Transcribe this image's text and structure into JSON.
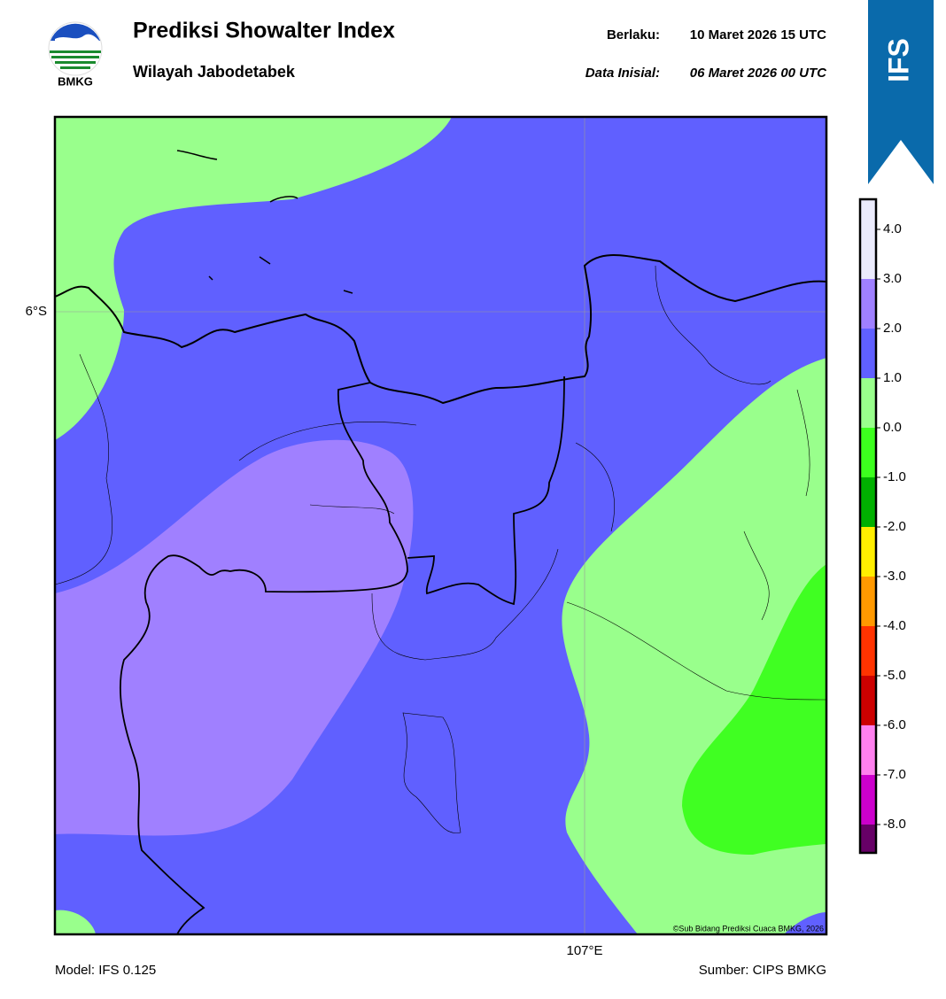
{
  "header": {
    "logo_text": "BMKG",
    "title": "Prediksi Showalter Index",
    "subtitle": "Wilayah Jabodetabek",
    "valid_label": "Berlaku:",
    "valid_time": "10 Maret 2026 15 UTC",
    "init_label": "Data Inisial:",
    "init_time": "06 Maret 2026 00 UTC",
    "model_badge": "IFS"
  },
  "map": {
    "lat_label": "6°S",
    "lon_label": "107°E",
    "credit": "©Sub Bidang Prediksi Cuaca BMKG, 2026"
  },
  "colorbar": {
    "ticks": [
      {
        "value": 4,
        "label": "4.0"
      },
      {
        "value": 3,
        "label": "3.0"
      },
      {
        "value": 2,
        "label": "2.0"
      },
      {
        "value": 1,
        "label": "1.0"
      },
      {
        "value": 0,
        "label": "0.0"
      },
      {
        "value": -1,
        "label": "-1.0"
      },
      {
        "value": -2,
        "label": "-2.0"
      },
      {
        "value": -3,
        "label": "-3.0"
      },
      {
        "value": -4,
        "label": "-4.0"
      },
      {
        "value": -5,
        "label": "-5.0"
      },
      {
        "value": -6,
        "label": "-6.0"
      },
      {
        "value": -7,
        "label": "-7.0"
      },
      {
        "value": -8,
        "label": "-8.0"
      }
    ],
    "colors": [
      "#ebebfc",
      "#9f80ff",
      "#6060ff",
      "#99ff8c",
      "#3cff1e",
      "#00b000",
      "#ffee00",
      "#ff9900",
      "#ff3300",
      "#cc0000",
      "#ff80ee",
      "#cc00cc",
      "#660066"
    ]
  },
  "footer": {
    "model": "Model: IFS 0.125",
    "source": "Sumber: CIPS BMKG"
  }
}
